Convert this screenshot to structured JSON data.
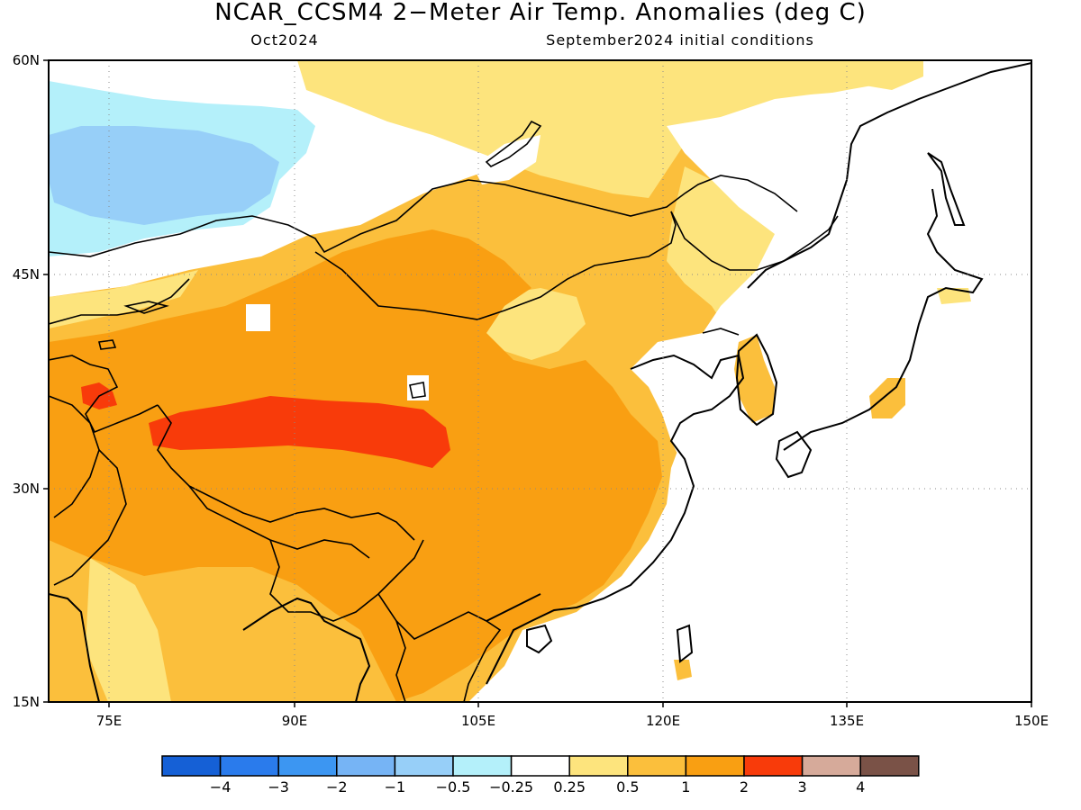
{
  "header": {
    "title": "NCAR_CCSM4 2−Meter Air Temp. Anomalies (deg C)",
    "target_month": "Oct2024",
    "init": "September2024 initial conditions"
  },
  "map": {
    "lon_labels": [
      "75E",
      "90E",
      "105E",
      "120E",
      "135E",
      "150E"
    ],
    "lat_labels": [
      "60N",
      "45N",
      "30N",
      "15N"
    ]
  },
  "colorbar": {
    "colors": [
      "#1560d6",
      "#2a7bec",
      "#3c96f2",
      "#76b4f5",
      "#97cff8",
      "#b4f0fa",
      "#ffffff",
      "#fde47d",
      "#fbbf3c",
      "#f99f12",
      "#f83b0a",
      "#d6aa9a",
      "#7a5247"
    ],
    "labels": [
      "−4",
      "−3",
      "−2",
      "−1",
      "−0.5",
      "−0.25",
      "0.25",
      "0.5",
      "1",
      "2",
      "3",
      "4"
    ]
  },
  "colors": {
    "light_blue": "#b4f0fa",
    "mid_blue": "#97cff8",
    "yellow": "#fde47d",
    "light_orange": "#fbbf3c",
    "orange": "#f99f12",
    "red": "#f83b0a"
  }
}
